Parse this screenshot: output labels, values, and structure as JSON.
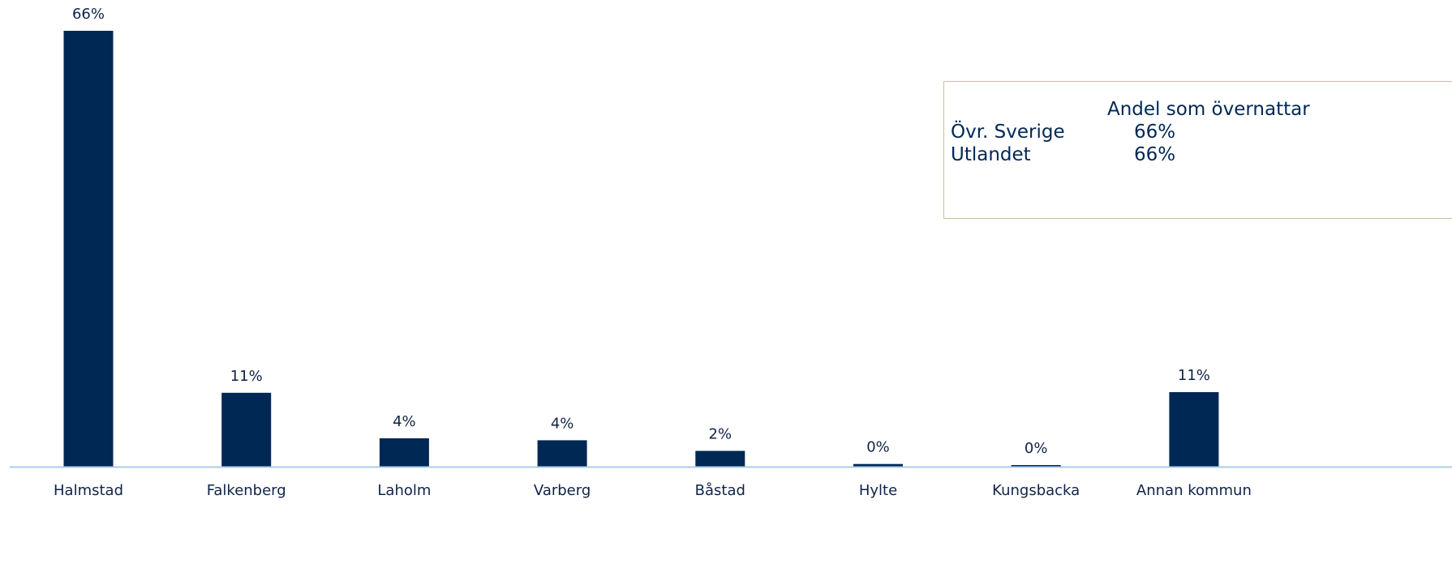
{
  "chart_data": {
    "type": "bar",
    "categories": [
      "Halmstad",
      "Falkenberg",
      "Laholm",
      "Varberg",
      "Båstad",
      "Hylte",
      "Kungsbacka",
      "Annan kommun"
    ],
    "values": [
      66,
      11,
      4,
      4,
      2,
      0,
      0,
      11
    ],
    "value_labels": [
      "66%",
      "11%",
      "4%",
      "4%",
      "2%",
      "0%",
      "0%",
      "11%"
    ],
    "raw_values": [
      66.1,
      11.2,
      4.3,
      4.0,
      2.4,
      0.4,
      0.2,
      11.3
    ],
    "title": "",
    "xlabel": "",
    "ylabel": "",
    "ylim": [
      0,
      70
    ],
    "grid": false,
    "bar_color": "#002855"
  },
  "info_box": {
    "heading": "Andel som övernattar",
    "rows": [
      {
        "label": "Övr. Sverige",
        "value": "66%"
      },
      {
        "label": "Utlandet",
        "value": "66%"
      }
    ]
  }
}
